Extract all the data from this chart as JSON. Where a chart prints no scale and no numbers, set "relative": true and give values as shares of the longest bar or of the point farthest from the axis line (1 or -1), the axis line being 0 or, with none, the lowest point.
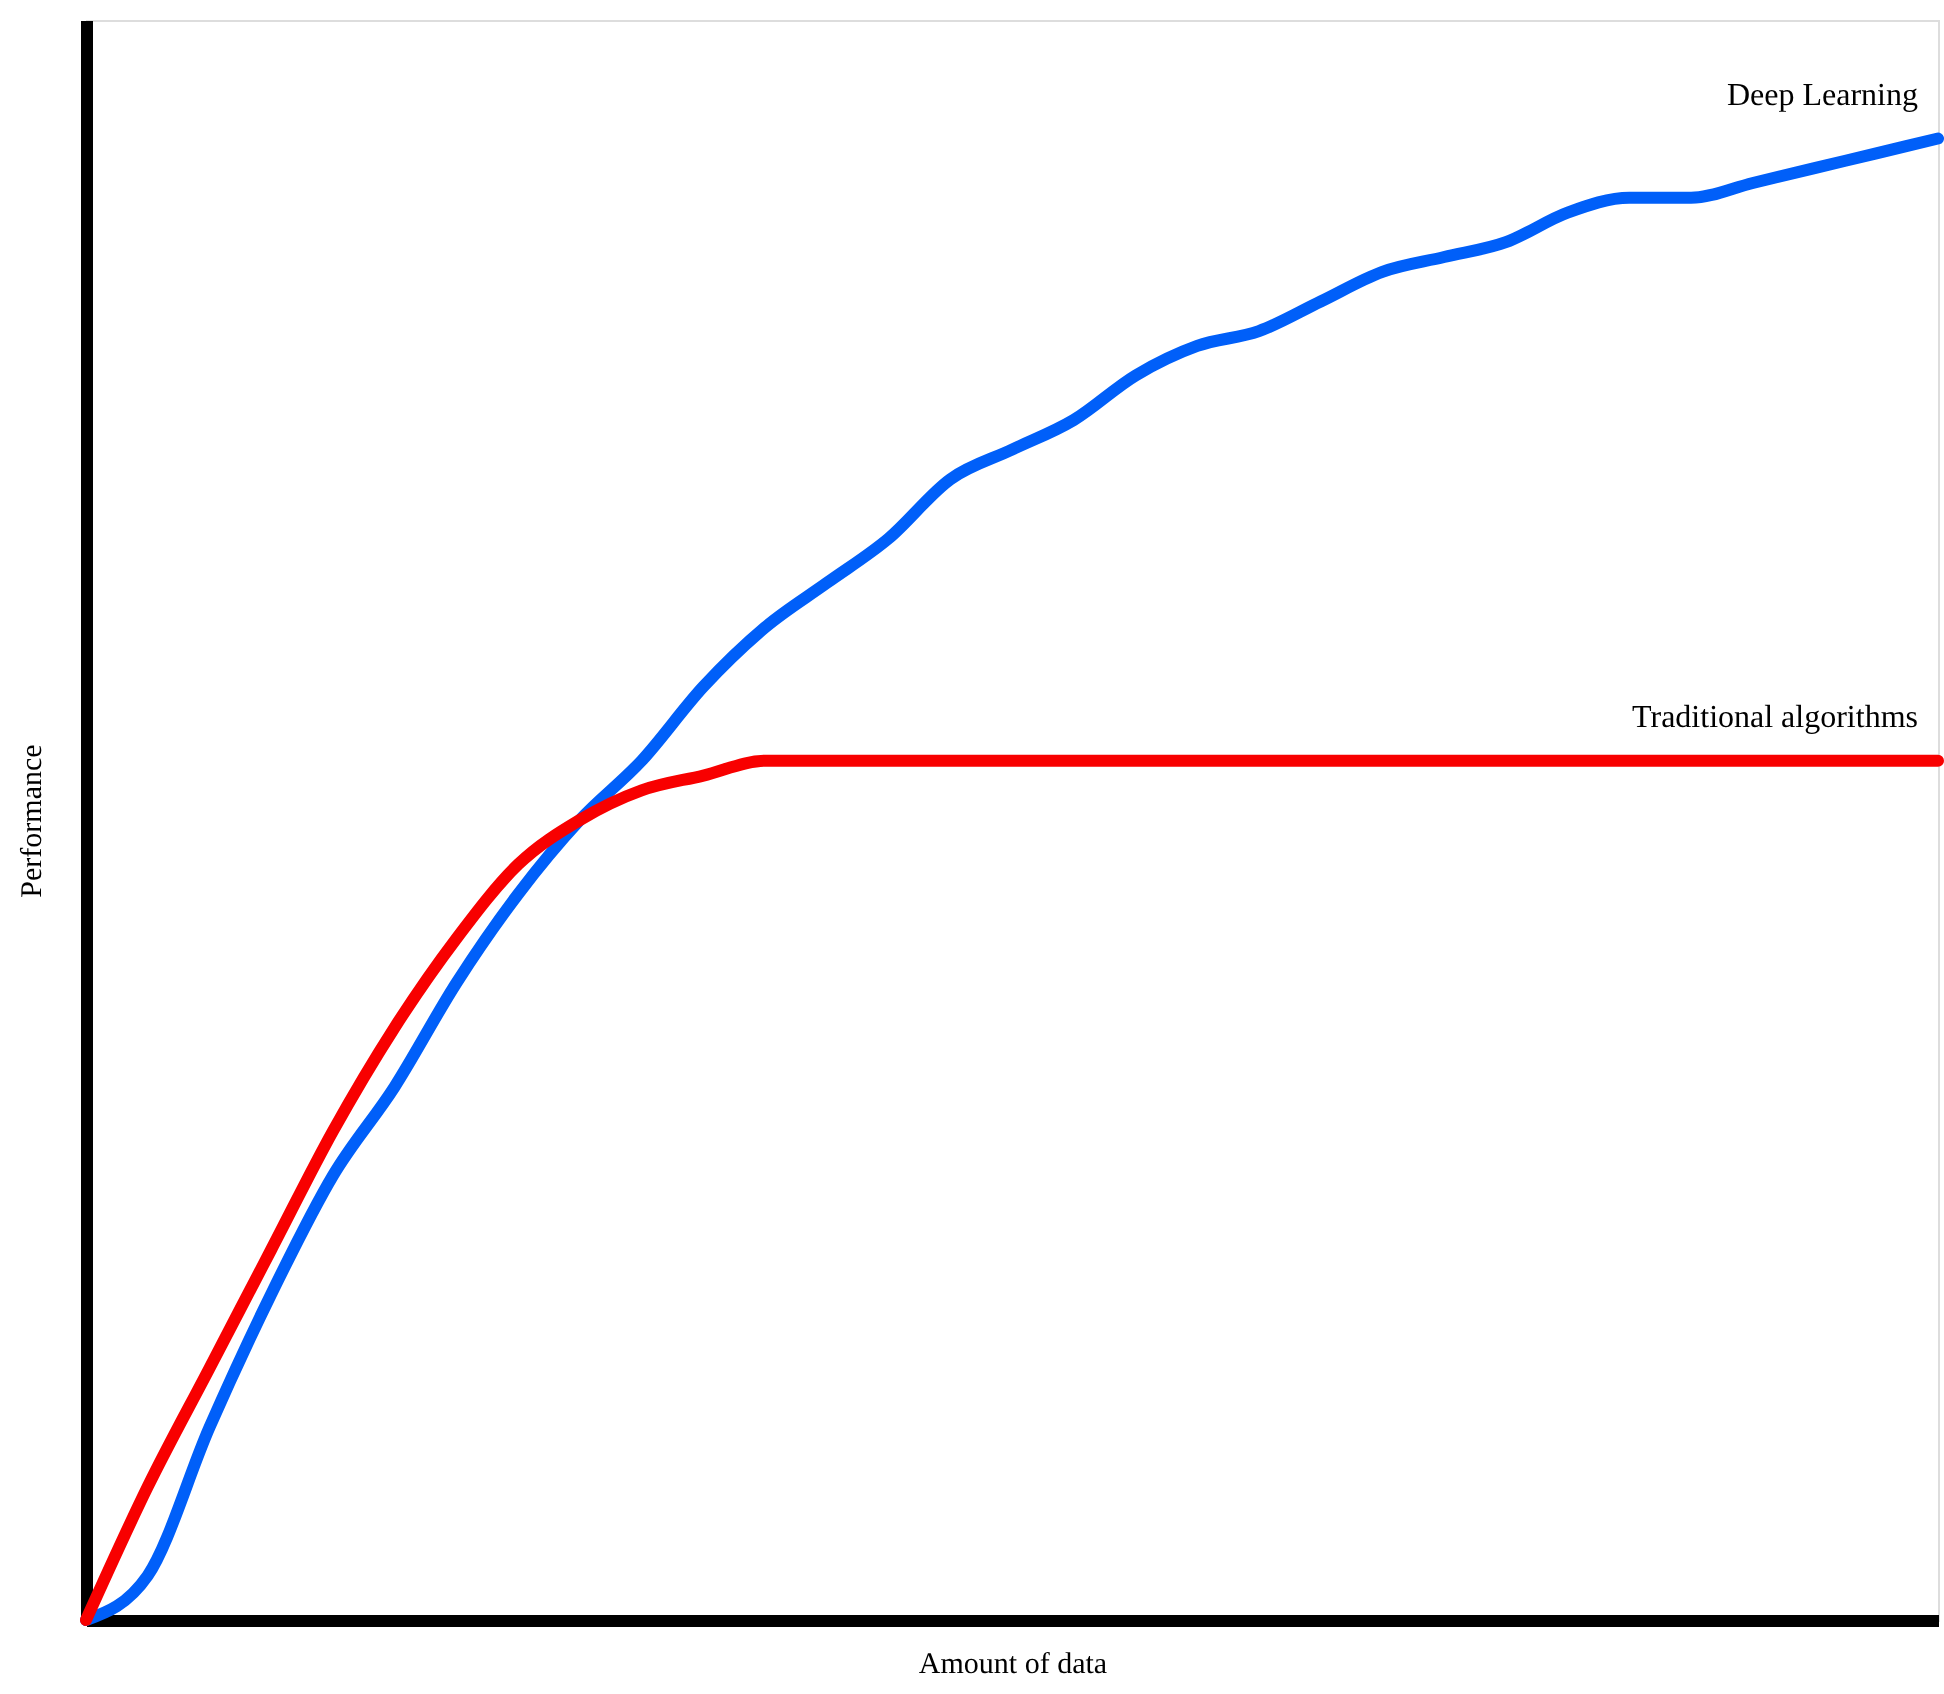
{
  "chart_data": {
    "type": "line",
    "relative": true,
    "xlabel": "Amount of data",
    "ylabel": "Performance",
    "categories": [
      null,
      null,
      null,
      null,
      null,
      null,
      null,
      null,
      null,
      null,
      null,
      null,
      null,
      null,
      null,
      null,
      null,
      null,
      null,
      null,
      null,
      null,
      null,
      null,
      null,
      null,
      null,
      null,
      null,
      null,
      null
    ],
    "series": [
      {
        "name": "Deep Learning",
        "color": "#005ff9",
        "values": [
          0,
          0.03,
          0.13,
          0.22,
          0.3,
          0.36,
          0.43,
          0.49,
          0.54,
          0.58,
          0.63,
          0.67,
          0.7,
          0.73,
          0.77,
          0.79,
          0.81,
          0.84,
          0.86,
          0.87,
          0.89,
          0.91,
          0.92,
          0.93,
          0.95,
          0.96,
          0.96,
          0.97,
          0.98,
          0.99,
          1
        ]
      },
      {
        "name": "Traditional algorithms",
        "color": "#f80000",
        "values": [
          0,
          0.09,
          0.17,
          0.25,
          0.33,
          0.4,
          0.46,
          0.51,
          0.54,
          0.56,
          0.57,
          0.58,
          0.58,
          0.58,
          0.58,
          0.58,
          0.58,
          0.58,
          0.58,
          0.58,
          0.58,
          0.58,
          0.58,
          0.58,
          0.58,
          0.58,
          0.58,
          0.58,
          0.58,
          0.58,
          0.58
        ]
      }
    ],
    "grid": false,
    "marker": "none",
    "line_style": "solid"
  }
}
